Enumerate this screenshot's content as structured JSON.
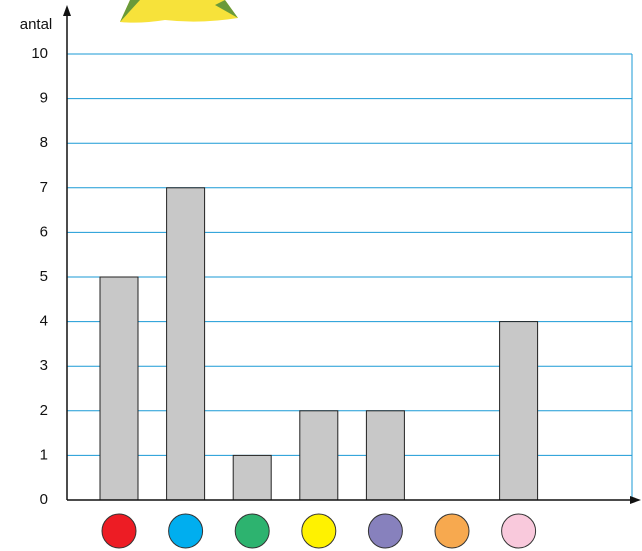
{
  "chart_data": {
    "type": "bar",
    "y_label": "antal",
    "categories": [
      null,
      null,
      null,
      null,
      null,
      null,
      null
    ],
    "values": [
      5,
      7,
      1,
      2,
      2,
      0,
      4
    ],
    "color": "#c8c8c8",
    "category_colors": [
      "#ed1c24",
      "#00aeef",
      "#2db36f",
      "#fff200",
      "#8781bd",
      "#f7a94f",
      "#f9c9dc"
    ],
    "ylim": [
      0,
      10
    ],
    "yticks": [
      0,
      1,
      2,
      3,
      4,
      5,
      6,
      7,
      8,
      9,
      10
    ],
    "grid": true,
    "grid_color": "#1a9ad6"
  }
}
